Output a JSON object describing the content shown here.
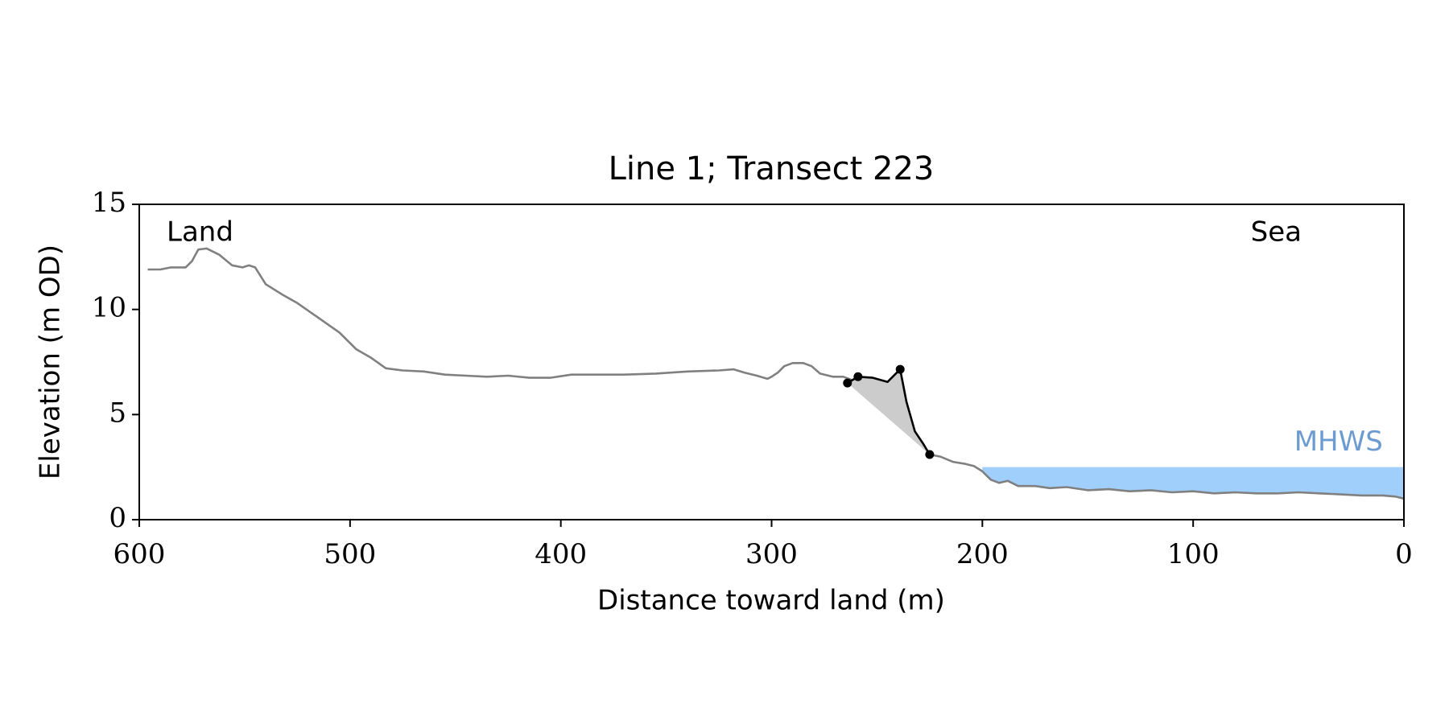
{
  "chart_data": {
    "type": "line",
    "title": "Line 1; Transect 223",
    "xlabel": "Distance toward land (m)",
    "ylabel": "Elevation (m OD)",
    "xlim": [
      600,
      0
    ],
    "ylim": [
      0,
      15
    ],
    "xticks": [
      600,
      500,
      400,
      300,
      200,
      100,
      0
    ],
    "yticks": [
      0,
      5,
      10,
      15
    ],
    "land_label": "Land",
    "sea_label": "Sea",
    "mhws": {
      "label": "MHWS",
      "value": 2.5,
      "x_start": 200,
      "color": "#a0cffc",
      "label_color": "#6b9bd1"
    },
    "series": [
      {
        "color": "#808080",
        "x": [
          596,
          590,
          585,
          578,
          575,
          572,
          568,
          562,
          556,
          551,
          548,
          545,
          540,
          532,
          525,
          515,
          505,
          497,
          490,
          483,
          475,
          465,
          455,
          445,
          435,
          425,
          415,
          405,
          395,
          385,
          370,
          355,
          340,
          325,
          318,
          313,
          307,
          302,
          300,
          297,
          294,
          290,
          285,
          281,
          277,
          271,
          266,
          262,
          243,
          225,
          220,
          214,
          208,
          204,
          200,
          196,
          192,
          188,
          183,
          175,
          168,
          160,
          150,
          140,
          130,
          120,
          110,
          100,
          90,
          80,
          70,
          60,
          50,
          40,
          30,
          20,
          10,
          4,
          0
        ],
        "values": [
          11.9,
          11.9,
          12.0,
          12.0,
          12.3,
          12.85,
          12.9,
          12.6,
          12.1,
          12.0,
          12.1,
          12.0,
          11.2,
          10.7,
          10.3,
          9.6,
          8.9,
          8.1,
          7.7,
          7.2,
          7.1,
          7.05,
          6.9,
          6.85,
          6.8,
          6.85,
          6.75,
          6.75,
          6.9,
          6.9,
          6.9,
          6.95,
          7.05,
          7.1,
          7.15,
          7.0,
          6.85,
          6.7,
          6.8,
          7.0,
          7.3,
          7.45,
          7.45,
          7.3,
          6.95,
          6.8,
          6.8,
          6.65,
          null,
          3.1,
          3.0,
          2.75,
          2.65,
          2.55,
          2.3,
          1.9,
          1.75,
          1.85,
          1.6,
          1.6,
          1.5,
          1.55,
          1.4,
          1.45,
          1.35,
          1.4,
          1.3,
          1.35,
          1.25,
          1.3,
          1.25,
          1.25,
          1.3,
          1.25,
          1.2,
          1.15,
          1.15,
          1.1,
          1.0
        ]
      },
      {
        "color": "#000000",
        "fill": "#cccccc",
        "x": [
          264,
          259,
          252,
          245,
          239,
          236,
          232,
          228,
          225
        ],
        "values": [
          6.5,
          6.8,
          6.75,
          6.55,
          7.15,
          5.6,
          4.2,
          3.6,
          3.1
        ],
        "markers": {
          "x": [
            264,
            259,
            239,
            225
          ],
          "values": [
            6.5,
            6.8,
            7.15,
            3.1
          ]
        }
      }
    ]
  }
}
